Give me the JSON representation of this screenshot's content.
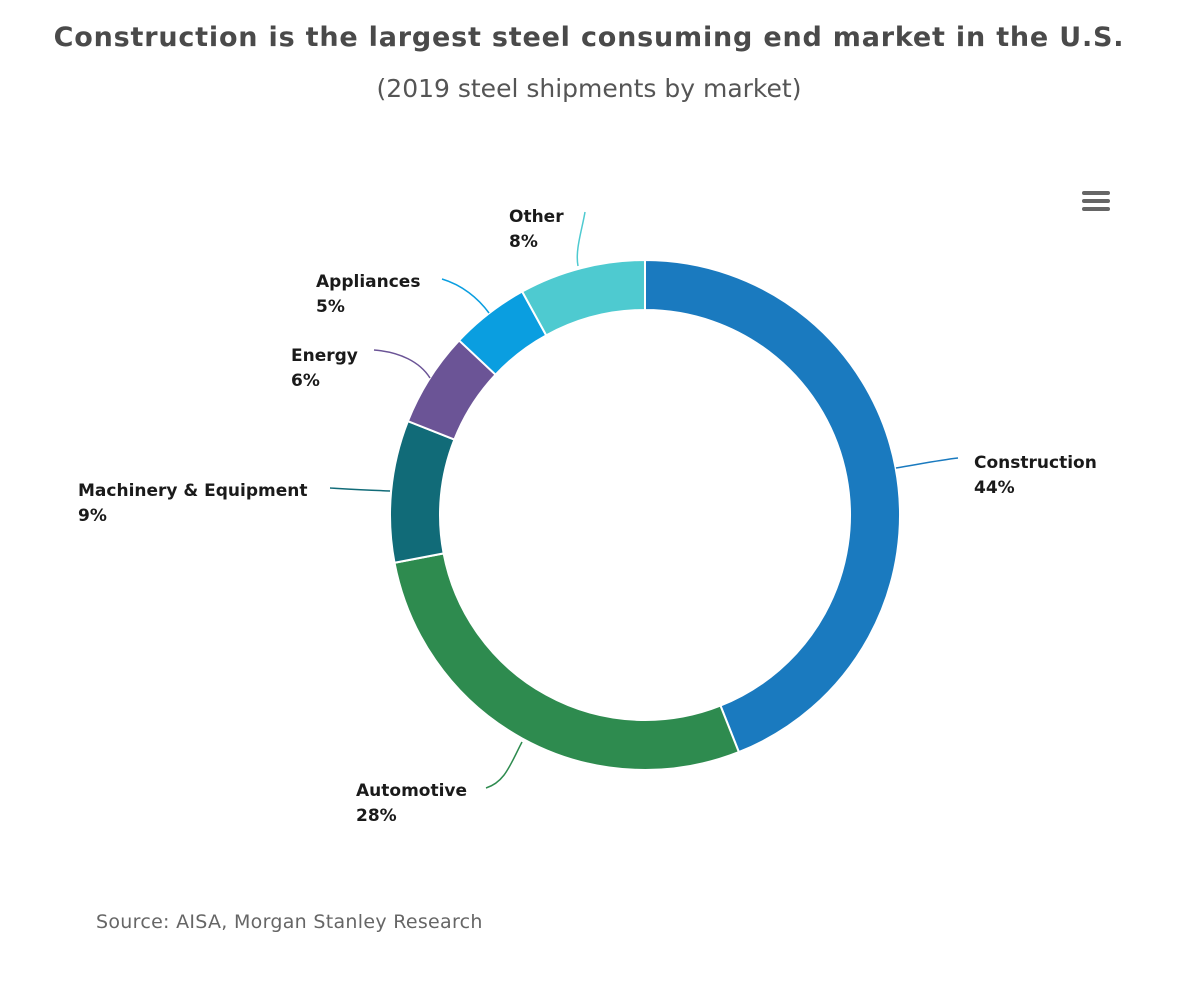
{
  "title": "Construction is the largest steel consuming end market in the U.S.",
  "subtitle": "(2019 steel shipments by market)",
  "source": "Source: AISA, Morgan Stanley Research",
  "menu_icon": "hamburger-menu-icon",
  "chart_data": {
    "type": "pie",
    "donut": true,
    "start": "12 o'clock, clockwise",
    "slices": [
      {
        "label": "Construction",
        "value": 44,
        "value_label": "44%",
        "color": "#1a7abf"
      },
      {
        "label": "Automotive",
        "value": 28,
        "value_label": "28%",
        "color": "#2e8b4f"
      },
      {
        "label": "Machinery & Equipment",
        "value": 9,
        "value_label": "9%",
        "color": "#116b78"
      },
      {
        "label": "Energy",
        "value": 6,
        "value_label": "6%",
        "color": "#6b5496"
      },
      {
        "label": "Appliances",
        "value": 5,
        "value_label": "5%",
        "color": "#0a9ee0"
      },
      {
        "label": "Other",
        "value": 8,
        "value_label": "8%",
        "color": "#4ecad0"
      }
    ]
  }
}
